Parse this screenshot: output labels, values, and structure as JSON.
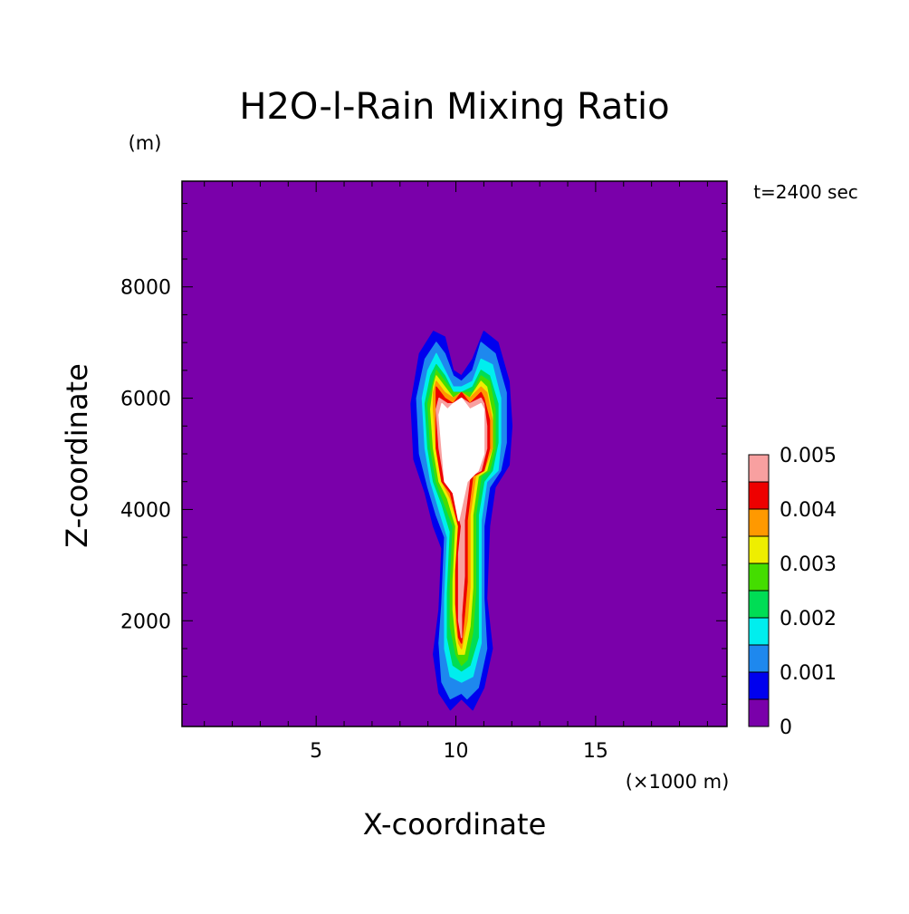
{
  "chart_data": {
    "type": "contour",
    "title": "H2O-l-Rain Mixing Ratio",
    "time_label": "t=2400 sec",
    "xlabel": "X-coordinate",
    "x_unit": "(×1000 m)",
    "ylabel": "Z-coordinate",
    "y_unit": "(m)",
    "xlim": [
      0.2,
      19.7
    ],
    "ylim": [
      100,
      9900
    ],
    "x_ticks": [
      5,
      10,
      15
    ],
    "x_tick_labels": [
      "5",
      "10",
      "15"
    ],
    "y_ticks": [
      2000,
      4000,
      6000,
      8000
    ],
    "y_tick_labels": [
      "2000",
      "4000",
      "6000",
      "8000"
    ],
    "x_minor_step": 1,
    "y_minor_step": 500,
    "contour_levels": [
      0,
      0.0005,
      0.001,
      0.0015,
      0.002,
      0.0025,
      0.003,
      0.0035,
      0.004,
      0.0045,
      0.005
    ],
    "colorbar_tick_values": [
      0,
      0.001,
      0.002,
      0.003,
      0.004,
      0.005
    ],
    "colorbar_tick_labels": [
      "0",
      "0.001",
      "0.002",
      "0.003",
      "0.004",
      "0.005"
    ],
    "level_colors": [
      "#7a00aa",
      "#0000ee",
      "#1e88ee",
      "#00eeee",
      "#00dd55",
      "#44dd00",
      "#eeee00",
      "#ff9900",
      "#ee0000",
      "#f8a0a0"
    ],
    "above_max_color": "#ffffff",
    "field": {
      "description_of_regions": "rain mixing ratio field by nested contour regions",
      "regions": [
        {
          "level_index": 1,
          "outline": [
            [
              9.2,
              7.2
            ],
            [
              9.6,
              7.1
            ],
            [
              9.9,
              6.5
            ],
            [
              10.2,
              6.4
            ],
            [
              10.6,
              6.7
            ],
            [
              11.0,
              7.2
            ],
            [
              11.5,
              7.0
            ],
            [
              11.9,
              6.3
            ],
            [
              12.0,
              5.5
            ],
            [
              11.9,
              4.8
            ],
            [
              11.4,
              4.4
            ],
            [
              11.2,
              3.7
            ],
            [
              11.1,
              2.4
            ],
            [
              11.3,
              1.5
            ],
            [
              11.0,
              0.8
            ],
            [
              10.6,
              0.4
            ],
            [
              10.2,
              0.6
            ],
            [
              9.8,
              0.4
            ],
            [
              9.4,
              0.7
            ],
            [
              9.2,
              1.4
            ],
            [
              9.4,
              2.2
            ],
            [
              9.5,
              3.3
            ],
            [
              9.2,
              3.7
            ],
            [
              8.9,
              4.3
            ],
            [
              8.5,
              4.9
            ],
            [
              8.4,
              5.9
            ],
            [
              8.7,
              6.8
            ]
          ]
        },
        {
          "level_index": 2,
          "outline": [
            [
              9.3,
              7.0
            ],
            [
              9.6,
              6.8
            ],
            [
              9.9,
              6.4
            ],
            [
              10.2,
              6.3
            ],
            [
              10.6,
              6.5
            ],
            [
              10.9,
              7.0
            ],
            [
              11.4,
              6.8
            ],
            [
              11.8,
              6.1
            ],
            [
              11.8,
              5.2
            ],
            [
              11.6,
              4.7
            ],
            [
              11.2,
              4.4
            ],
            [
              11.0,
              3.7
            ],
            [
              11.0,
              2.4
            ],
            [
              11.1,
              1.5
            ],
            [
              10.8,
              0.8
            ],
            [
              10.4,
              0.6
            ],
            [
              10.2,
              0.7
            ],
            [
              9.8,
              0.6
            ],
            [
              9.5,
              0.9
            ],
            [
              9.4,
              1.6
            ],
            [
              9.5,
              2.3
            ],
            [
              9.6,
              3.5
            ],
            [
              9.3,
              3.9
            ],
            [
              9.0,
              4.4
            ],
            [
              8.7,
              5.0
            ],
            [
              8.6,
              6.0
            ],
            [
              8.9,
              6.7
            ]
          ]
        },
        {
          "level_index": 3,
          "outline": [
            [
              9.3,
              6.8
            ],
            [
              9.6,
              6.5
            ],
            [
              9.9,
              6.2
            ],
            [
              10.2,
              6.2
            ],
            [
              10.6,
              6.3
            ],
            [
              10.9,
              6.7
            ],
            [
              11.3,
              6.6
            ],
            [
              11.6,
              6.0
            ],
            [
              11.6,
              5.2
            ],
            [
              11.5,
              4.7
            ],
            [
              11.1,
              4.5
            ],
            [
              10.9,
              3.8
            ],
            [
              10.9,
              2.4
            ],
            [
              10.9,
              1.6
            ],
            [
              10.6,
              1.0
            ],
            [
              10.2,
              0.9
            ],
            [
              9.8,
              1.0
            ],
            [
              9.6,
              1.5
            ],
            [
              9.6,
              2.4
            ],
            [
              9.7,
              3.5
            ],
            [
              9.4,
              4.0
            ],
            [
              9.1,
              4.5
            ],
            [
              8.9,
              5.1
            ],
            [
              8.8,
              6.0
            ],
            [
              9.0,
              6.5
            ]
          ]
        },
        {
          "level_index": 4,
          "outline": [
            [
              9.3,
              6.6
            ],
            [
              9.6,
              6.4
            ],
            [
              9.9,
              6.1
            ],
            [
              10.2,
              6.1
            ],
            [
              10.6,
              6.2
            ],
            [
              10.9,
              6.5
            ],
            [
              11.2,
              6.4
            ],
            [
              11.5,
              5.9
            ],
            [
              11.5,
              5.2
            ],
            [
              11.3,
              4.7
            ],
            [
              11.0,
              4.5
            ],
            [
              10.8,
              3.9
            ],
            [
              10.8,
              2.4
            ],
            [
              10.8,
              1.7
            ],
            [
              10.5,
              1.2
            ],
            [
              10.2,
              1.1
            ],
            [
              9.9,
              1.2
            ],
            [
              9.7,
              1.7
            ],
            [
              9.7,
              2.5
            ],
            [
              9.8,
              3.6
            ],
            [
              9.5,
              4.1
            ],
            [
              9.2,
              4.5
            ],
            [
              9.0,
              5.1
            ],
            [
              8.9,
              5.9
            ],
            [
              9.1,
              6.4
            ]
          ]
        },
        {
          "level_index": 5,
          "outline": [
            [
              9.3,
              6.5
            ],
            [
              9.6,
              6.3
            ],
            [
              9.9,
              6.1
            ],
            [
              10.2,
              6.1
            ],
            [
              10.6,
              6.1
            ],
            [
              10.9,
              6.4
            ],
            [
              11.2,
              6.3
            ],
            [
              11.4,
              5.8
            ],
            [
              11.4,
              5.1
            ],
            [
              11.2,
              4.7
            ],
            [
              10.9,
              4.6
            ],
            [
              10.7,
              3.9
            ],
            [
              10.7,
              2.5
            ],
            [
              10.6,
              1.8
            ],
            [
              10.4,
              1.3
            ],
            [
              10.2,
              1.2
            ],
            [
              10.0,
              1.4
            ],
            [
              9.8,
              1.9
            ],
            [
              9.8,
              2.6
            ],
            [
              9.9,
              3.7
            ],
            [
              9.6,
              4.1
            ],
            [
              9.3,
              4.5
            ],
            [
              9.1,
              5.1
            ],
            [
              9.0,
              5.9
            ],
            [
              9.2,
              6.3
            ]
          ]
        },
        {
          "level_index": 6,
          "outline": [
            [
              9.3,
              6.4
            ],
            [
              9.6,
              6.2
            ],
            [
              9.9,
              6.0
            ],
            [
              10.2,
              6.1
            ],
            [
              10.5,
              6.0
            ],
            [
              10.9,
              6.3
            ],
            [
              11.1,
              6.2
            ],
            [
              11.3,
              5.7
            ],
            [
              11.3,
              5.1
            ],
            [
              11.1,
              4.7
            ],
            [
              10.8,
              4.6
            ],
            [
              10.6,
              3.9
            ],
            [
              10.6,
              2.6
            ],
            [
              10.5,
              1.9
            ],
            [
              10.3,
              1.4
            ],
            [
              10.1,
              1.4
            ],
            [
              10.0,
              1.7
            ],
            [
              9.9,
              2.2
            ],
            [
              9.9,
              2.7
            ],
            [
              10.0,
              3.7
            ],
            [
              9.7,
              4.2
            ],
            [
              9.4,
              4.5
            ],
            [
              9.2,
              5.1
            ],
            [
              9.1,
              5.8
            ],
            [
              9.2,
              6.2
            ]
          ]
        },
        {
          "level_index": 7,
          "outline": [
            [
              9.3,
              6.3
            ],
            [
              9.6,
              6.1
            ],
            [
              9.9,
              6.0
            ],
            [
              10.2,
              6.1
            ],
            [
              10.5,
              6.0
            ],
            [
              10.9,
              6.2
            ],
            [
              11.1,
              6.1
            ],
            [
              11.3,
              5.6
            ],
            [
              11.3,
              5.1
            ],
            [
              11.0,
              4.7
            ],
            [
              10.7,
              4.6
            ],
            [
              10.5,
              3.9
            ],
            [
              10.5,
              2.6
            ],
            [
              10.4,
              2.0
            ],
            [
              10.2,
              1.5
            ],
            [
              10.1,
              1.6
            ],
            [
              10.0,
              2.0
            ],
            [
              10.0,
              2.5
            ],
            [
              10.0,
              2.8
            ],
            [
              10.1,
              3.7
            ],
            [
              9.8,
              4.2
            ],
            [
              9.5,
              4.5
            ],
            [
              9.3,
              5.1
            ],
            [
              9.2,
              5.8
            ],
            [
              9.2,
              6.1
            ]
          ]
        },
        {
          "level_index": 8,
          "outline": [
            [
              9.3,
              6.2
            ],
            [
              9.6,
              6.0
            ],
            [
              9.9,
              5.9
            ],
            [
              10.2,
              6.1
            ],
            [
              10.5,
              5.9
            ],
            [
              10.9,
              6.1
            ],
            [
              11.0,
              6.0
            ],
            [
              11.2,
              5.6
            ],
            [
              11.2,
              5.1
            ],
            [
              11.0,
              4.7
            ],
            [
              10.6,
              4.6
            ],
            [
              10.4,
              3.8
            ],
            [
              10.4,
              2.7
            ],
            [
              10.3,
              2.1
            ],
            [
              10.2,
              1.6
            ],
            [
              10.1,
              1.7
            ],
            [
              10.0,
              2.3
            ],
            [
              10.0,
              2.9
            ],
            [
              10.1,
              3.7
            ],
            [
              9.8,
              4.3
            ],
            [
              9.5,
              4.5
            ],
            [
              9.3,
              5.1
            ],
            [
              9.3,
              5.8
            ],
            [
              9.3,
              6.0
            ]
          ]
        },
        {
          "level_index": 9,
          "outline": [
            [
              9.4,
              6.0
            ],
            [
              9.7,
              5.9
            ],
            [
              9.9,
              5.9
            ],
            [
              10.2,
              6.0
            ],
            [
              10.5,
              5.9
            ],
            [
              10.9,
              6.0
            ],
            [
              11.0,
              5.9
            ],
            [
              11.1,
              5.5
            ],
            [
              11.1,
              5.1
            ],
            [
              10.9,
              4.7
            ],
            [
              10.5,
              4.6
            ],
            [
              10.3,
              3.8
            ],
            [
              10.3,
              2.8
            ],
            [
              10.2,
              2.1
            ],
            [
              10.2,
              1.7
            ],
            [
              10.1,
              2.0
            ],
            [
              10.1,
              2.7
            ],
            [
              10.1,
              3.2
            ],
            [
              10.2,
              3.7
            ],
            [
              9.9,
              4.3
            ],
            [
              9.6,
              4.5
            ],
            [
              9.4,
              5.1
            ],
            [
              9.3,
              5.8
            ]
          ]
        },
        {
          "level_index": 10,
          "outline": [
            [
              9.5,
              5.9
            ],
            [
              9.7,
              5.8
            ],
            [
              9.9,
              5.9
            ],
            [
              10.2,
              6.0
            ],
            [
              10.5,
              5.8
            ],
            [
              10.9,
              5.9
            ],
            [
              11.0,
              5.8
            ],
            [
              11.0,
              5.4
            ],
            [
              11.0,
              5.0
            ],
            [
              10.8,
              4.7
            ],
            [
              10.4,
              4.5
            ],
            [
              10.1,
              3.8
            ],
            [
              9.9,
              4.3
            ],
            [
              9.6,
              4.5
            ],
            [
              9.5,
              5.1
            ],
            [
              9.4,
              5.7
            ]
          ]
        }
      ]
    }
  }
}
